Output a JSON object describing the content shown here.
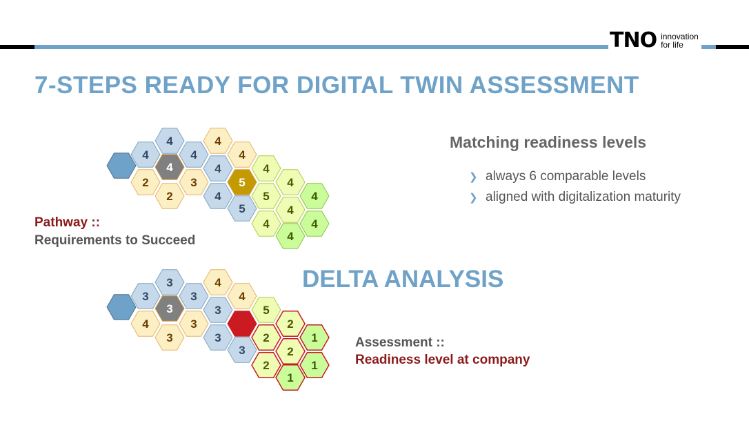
{
  "logo": {
    "mark": "TNO",
    "line1": "innovation",
    "line2": "for life"
  },
  "title": "7-STEPS READY FOR DIGITAL TWIN ASSESSMENT",
  "matching": {
    "heading": "Matching readiness levels",
    "bullets": [
      "always 6 comparable levels",
      "aligned with digitalization maturity"
    ]
  },
  "pathway": {
    "label": "Pathway ::",
    "sub": "Requirements to Succeed"
  },
  "delta": {
    "title": "DELTA ANALYSIS"
  },
  "assessment": {
    "label": "Assessment ::",
    "sub": "Readiness level at company"
  },
  "colors": {
    "blue_hex": "#6fa2c8",
    "light_blue": "#c5d9ea",
    "grey": "#808080",
    "cream": "#fdefc4",
    "gold": "#c39a00",
    "light_green": "#eefcb4",
    "green": "#cafc9a",
    "red": "#cc1a22",
    "title_blue": "#6fa2c8",
    "dark_red": "#8b1a1a"
  },
  "pathway_hexes": [
    {
      "text": "",
      "fill": "blue_hex"
    },
    {
      "text": "4",
      "fill": "light_blue"
    },
    {
      "text": "2",
      "fill": "cream"
    },
    {
      "text": "4",
      "fill": "light_blue"
    },
    {
      "text": "4",
      "fill": "grey"
    },
    {
      "text": "2",
      "fill": "cream"
    },
    {
      "text": "4",
      "fill": "light_blue"
    },
    {
      "text": "3",
      "fill": "cream"
    },
    {
      "text": "4",
      "fill": "cream"
    },
    {
      "text": "4",
      "fill": "light_blue"
    },
    {
      "text": "4",
      "fill": "light_blue"
    },
    {
      "text": "4",
      "fill": "cream"
    },
    {
      "text": "5",
      "fill": "gold"
    },
    {
      "text": "5",
      "fill": "light_blue"
    },
    {
      "text": "4",
      "fill": "light_green"
    },
    {
      "text": "5",
      "fill": "light_green"
    },
    {
      "text": "4",
      "fill": "light_green"
    },
    {
      "text": "4",
      "fill": "light_green"
    },
    {
      "text": "4",
      "fill": "light_green"
    },
    {
      "text": "4",
      "fill": "green"
    },
    {
      "text": "4",
      "fill": "green"
    },
    {
      "text": "4",
      "fill": "green"
    }
  ],
  "delta_hexes": [
    {
      "text": "",
      "fill": "blue_hex"
    },
    {
      "text": "3",
      "fill": "light_blue"
    },
    {
      "text": "4",
      "fill": "cream"
    },
    {
      "text": "3",
      "fill": "light_blue"
    },
    {
      "text": "3",
      "fill": "grey"
    },
    {
      "text": "3",
      "fill": "cream"
    },
    {
      "text": "3",
      "fill": "light_blue"
    },
    {
      "text": "3",
      "fill": "cream"
    },
    {
      "text": "4",
      "fill": "cream"
    },
    {
      "text": "3",
      "fill": "light_blue"
    },
    {
      "text": "3",
      "fill": "light_blue"
    },
    {
      "text": "4",
      "fill": "cream"
    },
    {
      "text": "",
      "fill": "red"
    },
    {
      "text": "3",
      "fill": "light_blue"
    },
    {
      "text": "5",
      "fill": "light_green"
    },
    {
      "text": "2",
      "fill": "light_green"
    },
    {
      "text": "2",
      "fill": "light_green"
    },
    {
      "text": "2",
      "fill": "light_green"
    },
    {
      "text": "2",
      "fill": "light_green"
    },
    {
      "text": "1",
      "fill": "green"
    },
    {
      "text": "1",
      "fill": "green"
    },
    {
      "text": "1",
      "fill": "green"
    }
  ]
}
